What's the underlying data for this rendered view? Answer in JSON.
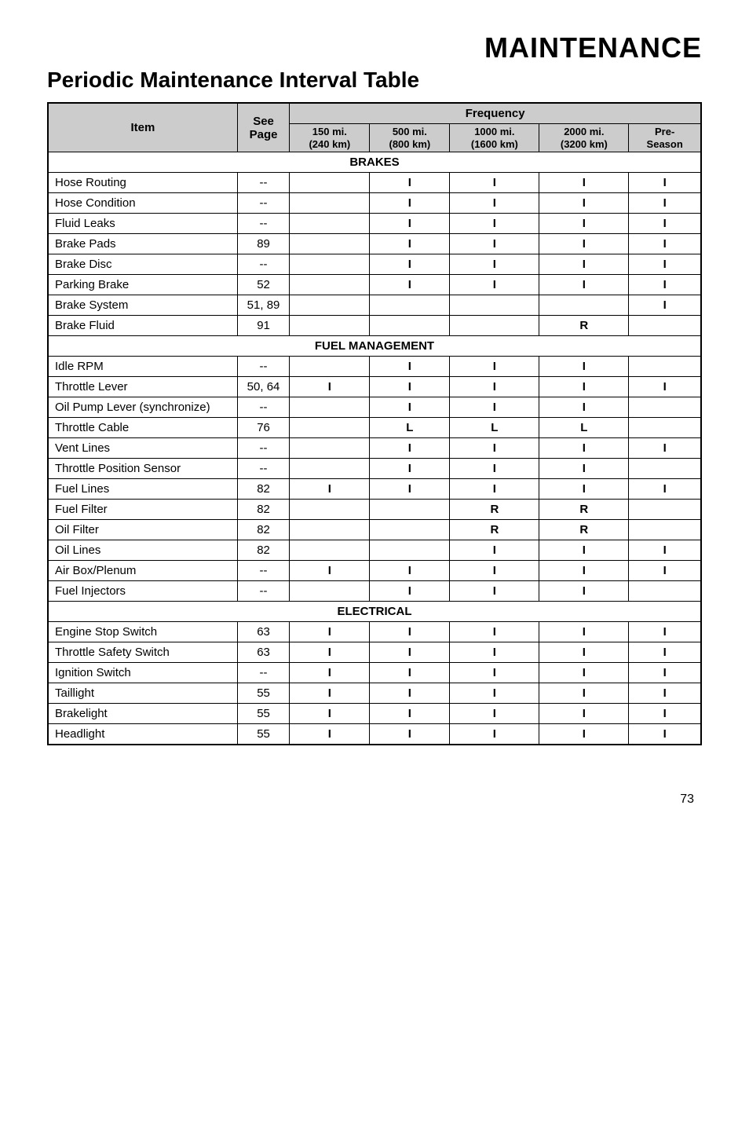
{
  "title_main": "MAINTENANCE",
  "title_sub": "Periodic Maintenance Interval Table",
  "headers": {
    "item": "Item",
    "see_page": "See Page",
    "frequency": "Frequency",
    "cols": [
      {
        "top": "150 mi.",
        "bot": "(240 km)"
      },
      {
        "top": "500 mi.",
        "bot": "(800 km)"
      },
      {
        "top": "1000 mi.",
        "bot": "(1600 km)"
      },
      {
        "top": "2000 mi.",
        "bot": "(3200 km)"
      },
      {
        "top": "Pre-",
        "bot": "Season"
      }
    ]
  },
  "sections": [
    {
      "name": "BRAKES",
      "rows": [
        {
          "item": "Hose Routing",
          "page": "--",
          "v": [
            "",
            "I",
            "I",
            "I",
            "I"
          ]
        },
        {
          "item": "Hose Condition",
          "page": "--",
          "v": [
            "",
            "I",
            "I",
            "I",
            "I"
          ]
        },
        {
          "item": "Fluid Leaks",
          "page": "--",
          "v": [
            "",
            "I",
            "I",
            "I",
            "I"
          ]
        },
        {
          "item": "Brake Pads",
          "page": "89",
          "v": [
            "",
            "I",
            "I",
            "I",
            "I"
          ]
        },
        {
          "item": "Brake Disc",
          "page": "--",
          "v": [
            "",
            "I",
            "I",
            "I",
            "I"
          ]
        },
        {
          "item": "Parking Brake",
          "page": "52",
          "v": [
            "",
            "I",
            "I",
            "I",
            "I"
          ]
        },
        {
          "item": "Brake System",
          "page": "51, 89",
          "v": [
            "",
            "",
            "",
            "",
            "I"
          ]
        },
        {
          "item": "Brake Fluid",
          "page": "91",
          "v": [
            "",
            "",
            "",
            "R",
            ""
          ]
        }
      ]
    },
    {
      "name": "FUEL MANAGEMENT",
      "rows": [
        {
          "item": "Idle RPM",
          "page": "--",
          "v": [
            "",
            "I",
            "I",
            "I",
            ""
          ]
        },
        {
          "item": "Throttle Lever",
          "page": "50, 64",
          "v": [
            "I",
            "I",
            "I",
            "I",
            "I"
          ]
        },
        {
          "item": "Oil Pump Lever (synchronize)",
          "page": "--",
          "v": [
            "",
            "I",
            "I",
            "I",
            ""
          ]
        },
        {
          "item": "Throttle Cable",
          "page": "76",
          "v": [
            "",
            "L",
            "L",
            "L",
            ""
          ]
        },
        {
          "item": "Vent Lines",
          "page": "--",
          "v": [
            "",
            "I",
            "I",
            "I",
            "I"
          ]
        },
        {
          "item": "Throttle Position Sensor",
          "page": "--",
          "v": [
            "",
            "I",
            "I",
            "I",
            ""
          ]
        },
        {
          "item": "Fuel Lines",
          "page": "82",
          "v": [
            "I",
            "I",
            "I",
            "I",
            "I"
          ]
        },
        {
          "item": "Fuel Filter",
          "page": "82",
          "v": [
            "",
            "",
            "R",
            "R",
            ""
          ]
        },
        {
          "item": "Oil Filter",
          "page": "82",
          "v": [
            "",
            "",
            "R",
            "R",
            ""
          ]
        },
        {
          "item": "Oil Lines",
          "page": "82",
          "v": [
            "",
            "",
            "I",
            "I",
            "I"
          ]
        },
        {
          "item": "Air Box/Plenum",
          "page": "--",
          "v": [
            "I",
            "I",
            "I",
            "I",
            "I"
          ]
        },
        {
          "item": "Fuel Injectors",
          "page": "--",
          "v": [
            "",
            "I",
            "I",
            "I",
            ""
          ]
        }
      ]
    },
    {
      "name": "ELECTRICAL",
      "rows": [
        {
          "item": "Engine Stop Switch",
          "page": "63",
          "v": [
            "I",
            "I",
            "I",
            "I",
            "I"
          ]
        },
        {
          "item": "Throttle Safety Switch",
          "page": "63",
          "v": [
            "I",
            "I",
            "I",
            "I",
            "I"
          ]
        },
        {
          "item": "Ignition Switch",
          "page": "--",
          "v": [
            "I",
            "I",
            "I",
            "I",
            "I"
          ]
        },
        {
          "item": "Taillight",
          "page": "55",
          "v": [
            "I",
            "I",
            "I",
            "I",
            "I"
          ]
        },
        {
          "item": "Brakelight",
          "page": "55",
          "v": [
            "I",
            "I",
            "I",
            "I",
            "I"
          ]
        },
        {
          "item": "Headlight",
          "page": "55",
          "v": [
            "I",
            "I",
            "I",
            "I",
            "I"
          ]
        }
      ]
    }
  ],
  "page_number": "73"
}
